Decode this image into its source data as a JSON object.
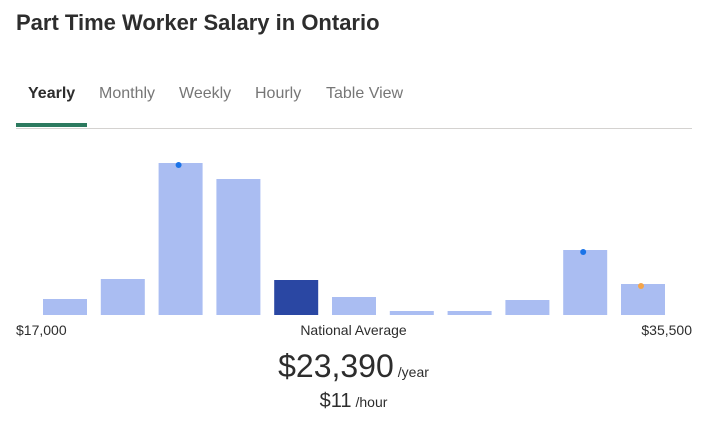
{
  "page": {
    "title": "Part Time Worker Salary in Ontario"
  },
  "tabs": [
    {
      "label": "Yearly",
      "active": true
    },
    {
      "label": "Monthly",
      "active": false
    },
    {
      "label": "Weekly",
      "active": false
    },
    {
      "label": "Hourly",
      "active": false
    },
    {
      "label": "Table View",
      "active": false
    }
  ],
  "colors": {
    "accent": "#2c7a5f",
    "bar": "#aabdf2",
    "bar_highlight": "#2a47a3",
    "marker_blue": "#1a73e8",
    "marker_orange": "#f5a54a"
  },
  "chart_data": {
    "type": "bar",
    "x_min_label": "$17,000",
    "x_max_label": "$35,500",
    "center_label": "National Average",
    "values": [
      16,
      36,
      152,
      136,
      35,
      18,
      4,
      4,
      15,
      65,
      31
    ],
    "highlight_index": 4,
    "markers": [
      {
        "bar": 2,
        "color": "marker_blue"
      },
      {
        "bar": 9,
        "color": "marker_blue"
      },
      {
        "bar": 10,
        "color": "marker_orange"
      }
    ]
  },
  "salary": {
    "yearly_amount": "$23,390",
    "yearly_unit": "/year",
    "hourly_amount": "$11",
    "hourly_unit": "/hour"
  }
}
